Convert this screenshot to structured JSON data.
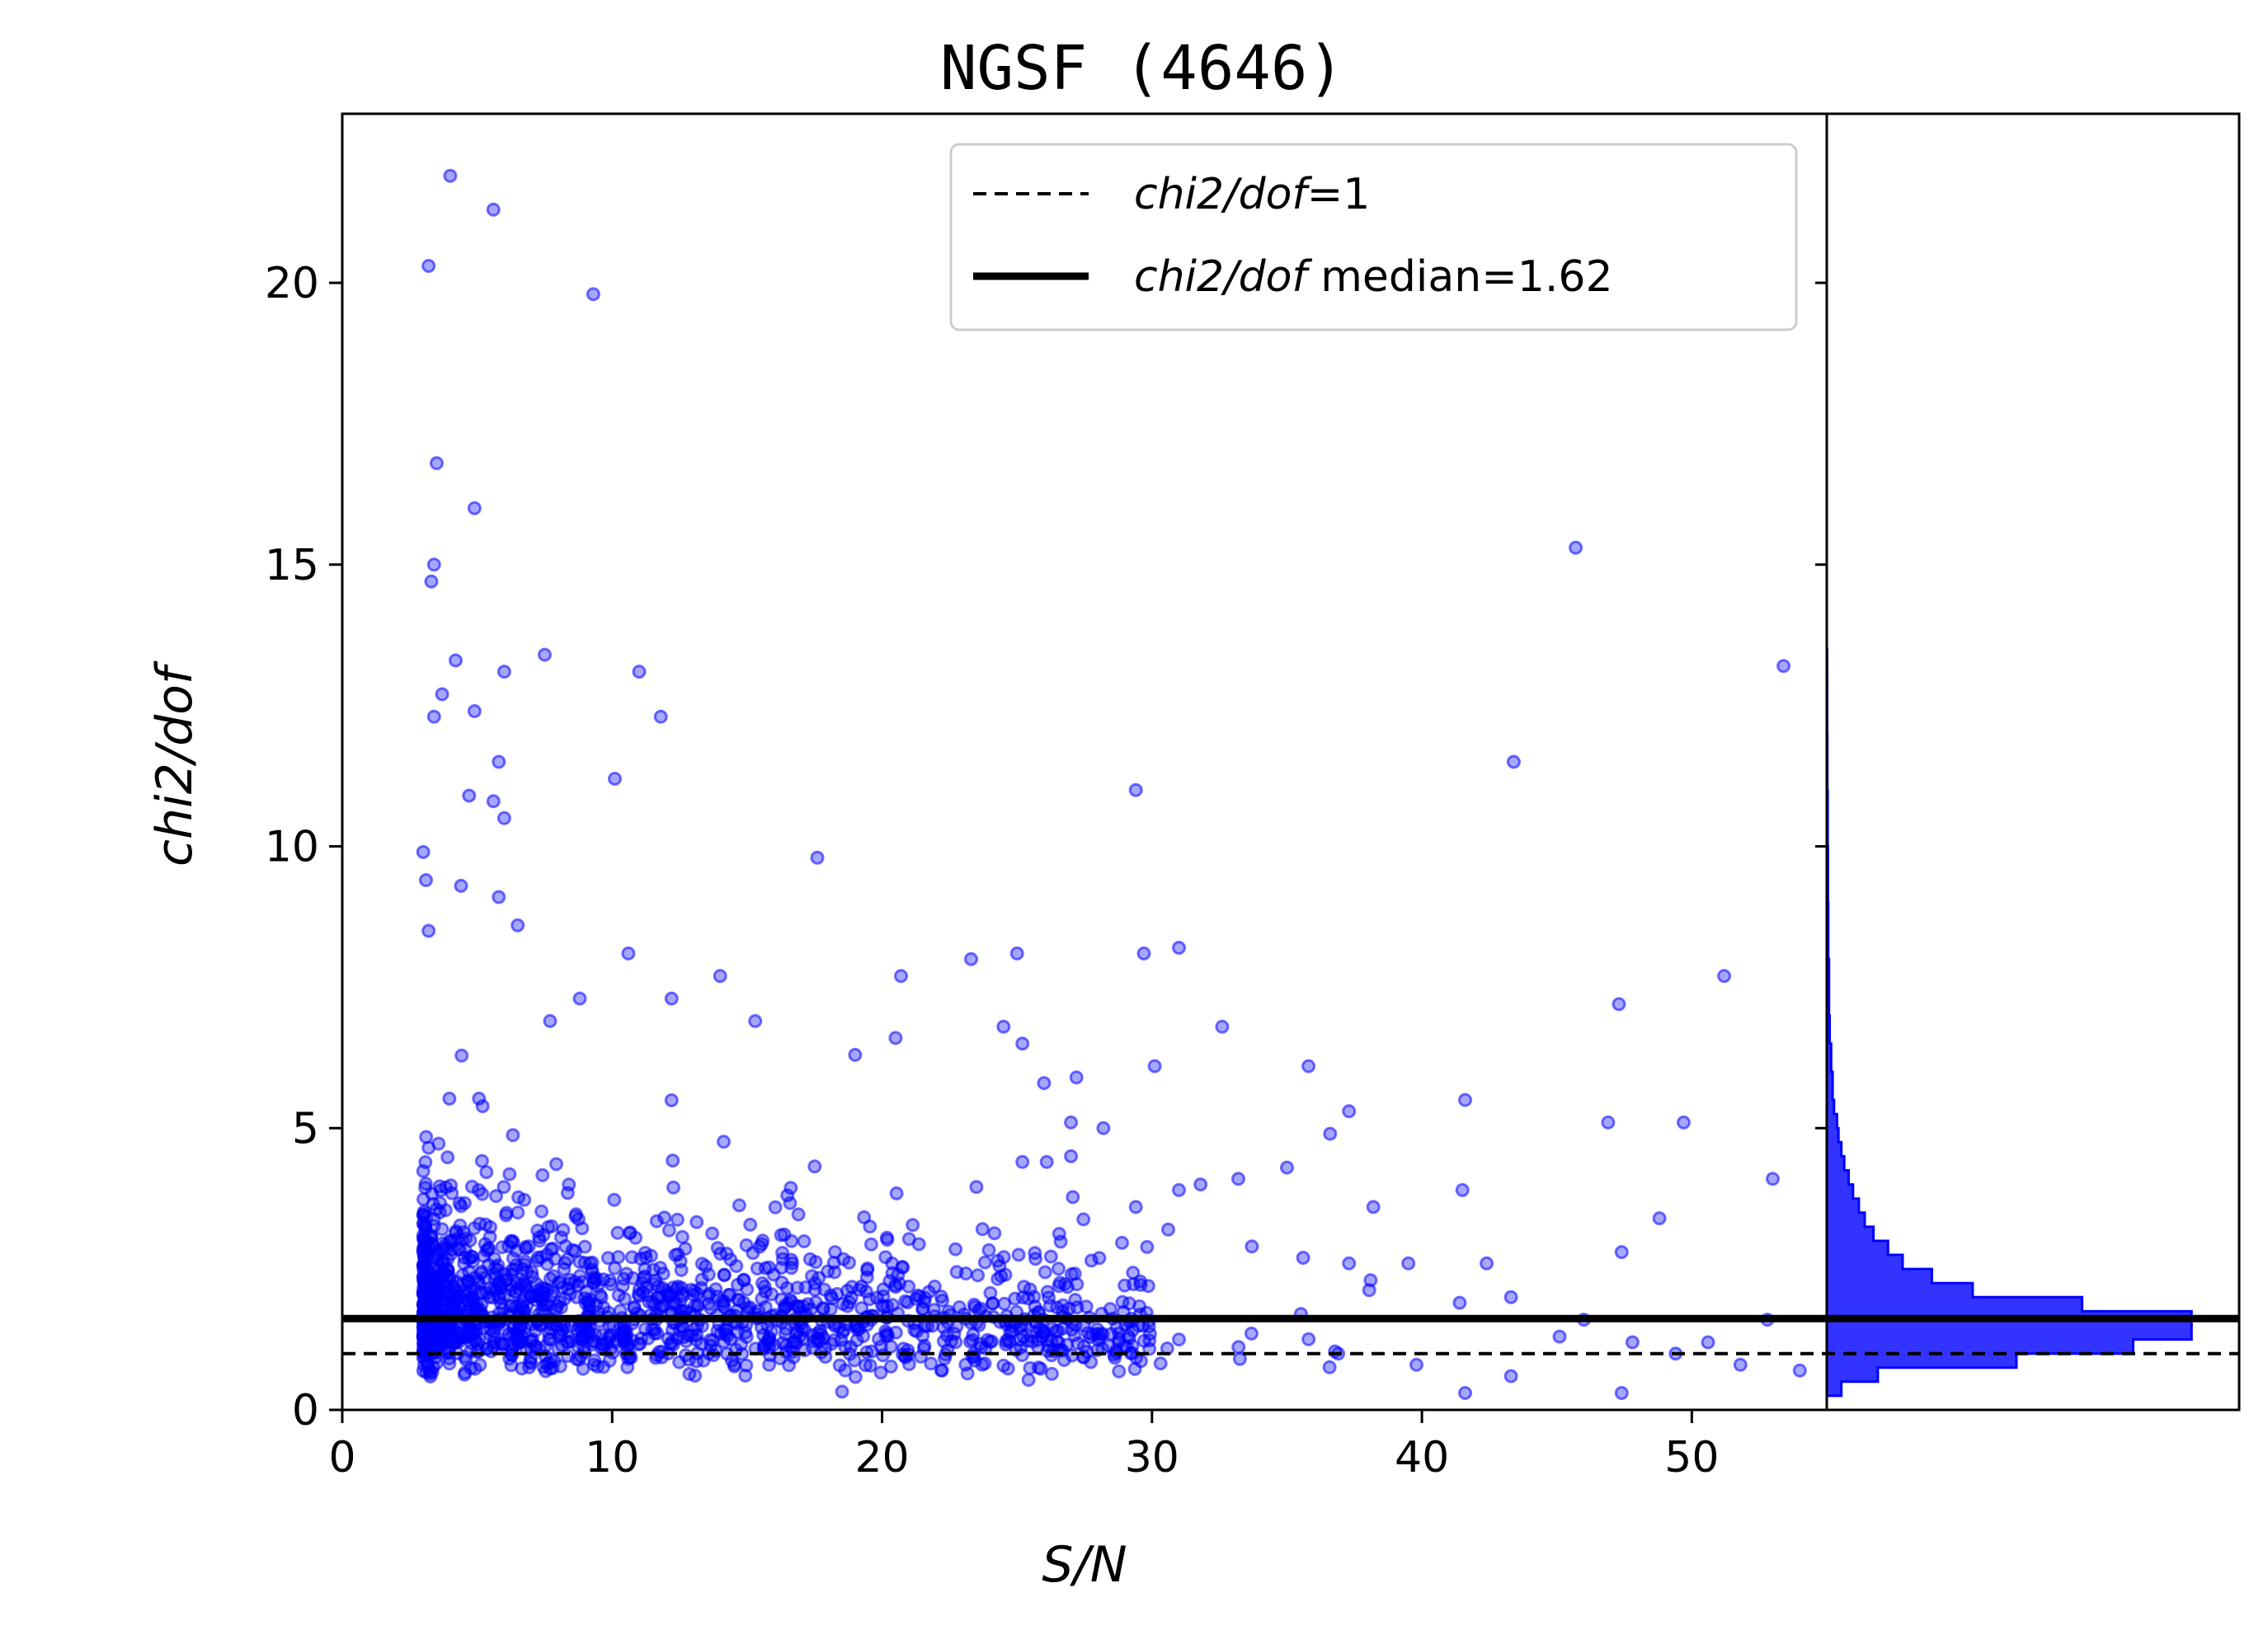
{
  "chart_data": {
    "type": "scatter",
    "title": "NGSF (4646)",
    "xlabel": "S/N",
    "ylabel": "chi2/dof",
    "xlim": [
      0,
      55
    ],
    "ylim": [
      0,
      23
    ],
    "xticks": [
      0,
      10,
      20,
      30,
      40,
      50
    ],
    "yticks": [
      0,
      5,
      10,
      15,
      20
    ],
    "marker_color": "#0000ff",
    "grid": false,
    "legend_position": "top-right",
    "legend": [
      {
        "style": "dashed",
        "label_italic": "chi2/dof",
        "label_rest": "=1"
      },
      {
        "style": "solid-thick",
        "label_italic": "chi2/dof",
        "label_rest": " median=1.62"
      }
    ],
    "reference_lines": [
      {
        "name": "chi2/dof=1",
        "y": 1.0,
        "style": "dashed"
      },
      {
        "name": "median",
        "y": 1.62,
        "style": "solid"
      }
    ],
    "points": [
      [
        4.0,
        21.9
      ],
      [
        5.6,
        21.3
      ],
      [
        3.2,
        20.3
      ],
      [
        9.3,
        19.8
      ],
      [
        3.5,
        16.8
      ],
      [
        4.9,
        16.0
      ],
      [
        3.4,
        15.0
      ],
      [
        3.3,
        14.7
      ],
      [
        45.7,
        15.3
      ],
      [
        53.4,
        13.2
      ],
      [
        7.5,
        13.4
      ],
      [
        11.0,
        13.1
      ],
      [
        6.0,
        13.1
      ],
      [
        4.2,
        13.3
      ],
      [
        11.8,
        12.3
      ],
      [
        43.4,
        11.5
      ],
      [
        29.4,
        11.0
      ],
      [
        10.1,
        11.2
      ],
      [
        17.6,
        9.8
      ],
      [
        5.8,
        11.5
      ],
      [
        4.9,
        12.4
      ],
      [
        3.7,
        12.7
      ],
      [
        3.4,
        12.3
      ],
      [
        4.7,
        10.9
      ],
      [
        5.6,
        10.8
      ],
      [
        6.0,
        10.5
      ],
      [
        3.0,
        9.9
      ],
      [
        3.1,
        9.4
      ],
      [
        4.4,
        9.3
      ],
      [
        5.8,
        9.1
      ],
      [
        6.5,
        8.6
      ],
      [
        3.2,
        8.5
      ],
      [
        10.6,
        8.1
      ],
      [
        29.7,
        8.1
      ],
      [
        31.0,
        8.2
      ],
      [
        25.0,
        8.1
      ],
      [
        23.3,
        8.0
      ],
      [
        14.0,
        7.7
      ],
      [
        20.7,
        7.7
      ],
      [
        51.2,
        7.7
      ],
      [
        47.3,
        7.2
      ],
      [
        32.6,
        6.8
      ],
      [
        24.5,
        6.8
      ],
      [
        12.2,
        7.3
      ],
      [
        15.3,
        6.9
      ],
      [
        8.8,
        7.3
      ],
      [
        7.7,
        6.9
      ],
      [
        30.1,
        6.1
      ],
      [
        35.8,
        6.1
      ],
      [
        19.0,
        6.3
      ],
      [
        20.5,
        6.6
      ],
      [
        25.2,
        6.5
      ],
      [
        26.0,
        5.8
      ],
      [
        27.2,
        5.9
      ],
      [
        41.6,
        5.5
      ],
      [
        37.3,
        5.3
      ],
      [
        49.7,
        5.1
      ],
      [
        46.9,
        5.1
      ],
      [
        36.6,
        4.9
      ],
      [
        27.0,
        5.1
      ],
      [
        28.2,
        5.0
      ],
      [
        25.2,
        4.4
      ],
      [
        26.1,
        4.4
      ],
      [
        27.0,
        4.5
      ],
      [
        35.0,
        4.3
      ],
      [
        33.2,
        4.1
      ],
      [
        31.0,
        3.9
      ],
      [
        31.8,
        4.0
      ],
      [
        41.5,
        3.9
      ],
      [
        53.0,
        4.1
      ],
      [
        48.8,
        3.4
      ],
      [
        38.2,
        3.6
      ],
      [
        29.4,
        3.6
      ],
      [
        30.6,
        3.2
      ],
      [
        33.7,
        2.9
      ],
      [
        35.6,
        2.7
      ],
      [
        37.3,
        2.6
      ],
      [
        39.5,
        2.6
      ],
      [
        38.1,
        2.3
      ],
      [
        42.4,
        2.6
      ],
      [
        47.4,
        2.8
      ],
      [
        43.3,
        2.0
      ],
      [
        41.4,
        1.9
      ],
      [
        46.0,
        1.6
      ],
      [
        52.8,
        1.6
      ],
      [
        45.1,
        1.3
      ],
      [
        47.8,
        1.2
      ],
      [
        49.4,
        1.0
      ],
      [
        50.6,
        1.2
      ],
      [
        51.8,
        0.8
      ],
      [
        54.0,
        0.7
      ],
      [
        43.3,
        0.6
      ],
      [
        47.4,
        0.3
      ],
      [
        41.6,
        0.3
      ],
      [
        39.8,
        0.8
      ],
      [
        36.9,
        1.0
      ]
    ],
    "dense_cloud": {
      "description": "",
      "x_range": [
        3,
        30
      ],
      "y_range": [
        0.3,
        6
      ],
      "count": 1600
    },
    "histogram": {
      "orientation": "horizontal",
      "bins_y": [
        0.25,
        0.5,
        0.75,
        1.0,
        1.25,
        1.5,
        1.75,
        2.0,
        2.25,
        2.5,
        2.75,
        3.0,
        3.25,
        3.5,
        3.75,
        4.0,
        4.25,
        4.5,
        4.75,
        5.0,
        5.25,
        5.5,
        6.0,
        6.5,
        7.0,
        8.0,
        9.0,
        10.0,
        11.0,
        12.0,
        13.0
      ],
      "counts": [
        10,
        35,
        130,
        210,
        250,
        250,
        175,
        100,
        72,
        52,
        42,
        32,
        26,
        22,
        18,
        15,
        12,
        10,
        8,
        7,
        5,
        4,
        3,
        2,
        1.5,
        1,
        0.8,
        0.6,
        0.4,
        0.3,
        0.2
      ]
    }
  }
}
